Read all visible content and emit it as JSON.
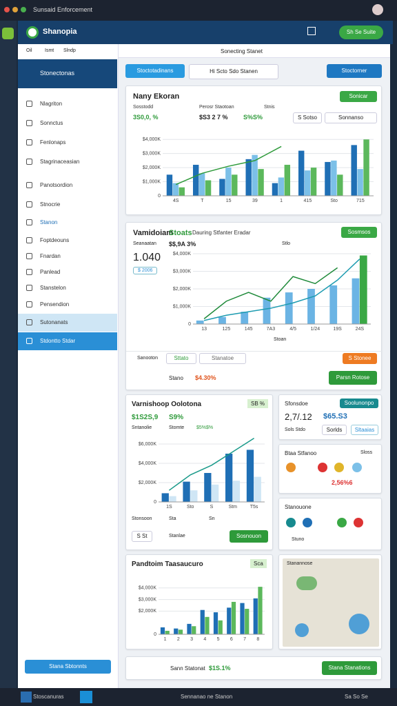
{
  "window": {
    "title": "Sunsaid Enforcement"
  },
  "header": {
    "app": "Shanopia",
    "button": "Sh Se Suite"
  },
  "sidebar": {
    "tabs": [
      "Oil",
      "Ismt",
      "Slndp"
    ],
    "selected": "Stonectonas",
    "items": [
      "Nlagriton",
      "Sonnctus",
      "Fenlonaps",
      "Stagrinaceasian",
      "Panotsordion",
      "Stnocrie",
      "Stanon",
      "Foptdeouns",
      "Fnardan",
      "Panlead",
      "Stanstelon",
      "Pensendion",
      "Sutonanats",
      "Stdontto Stdar"
    ],
    "footer_button": "Stana Sbtonnts"
  },
  "toolbar": {
    "title": "Sonecting Stanet",
    "primary": "Stoctotadinans",
    "segment": "Hi Scto  Sdo  Stanen",
    "secondary": "Stoctorner"
  },
  "card1": {
    "title": "Nany Ekoran",
    "button": "Sonicar",
    "stat_labels": [
      "Sosstodd",
      "Perosr Staotoan",
      "Stnis"
    ],
    "stat_values": [
      "3S0,0, %",
      "$S3 2 7 %",
      "S%S%"
    ],
    "pills": [
      "S Sotso",
      "Sonnanso"
    ],
    "chart": {
      "ylim": [
        0,
        4500
      ],
      "yticks": [
        0,
        {
          "value": 1000,
          "label": "$1,000K"
        },
        {
          "value": 2000,
          "label": "$2,000K"
        },
        {
          "value": 3000,
          "label": "$3,000K"
        },
        {
          "value": 4000,
          "label": "$4,000K"
        }
      ],
      "categories": [
        "4S",
        "T",
        "15",
        "39",
        "1",
        "415",
        "Sto",
        "715"
      ],
      "series": [
        {
          "color": "#1f6fb5",
          "values": [
            1500,
            2200,
            1200,
            2600,
            900,
            3200,
            2400,
            3600
          ]
        },
        {
          "color": "#7cc0e8",
          "values": [
            900,
            1600,
            2000,
            2900,
            1300,
            1800,
            2500,
            1900
          ]
        },
        {
          "color": "#5cb85c",
          "values": [
            600,
            1100,
            1500,
            1900,
            2200,
            2000,
            1500,
            4000
          ]
        }
      ],
      "lines": [
        {
          "color": "#2e9a3a",
          "values": [
            800,
            1600,
            2100,
            2500,
            3500,
            null,
            null,
            null
          ]
        }
      ]
    }
  },
  "card2": {
    "title": "Vamidoiam",
    "tag": "Stoats",
    "subtitle": "Dauring Stfanter Eradar",
    "button": "Sosmsos",
    "stat_label": "Seanaatan",
    "stat_change": "$$,9A 3%",
    "big": "1.040",
    "badge": "$ 2006",
    "legend": "Stlo",
    "x_label": "Stoan",
    "chart": {
      "ylim": [
        0,
        4000
      ],
      "yticks": [
        0,
        {
          "value": 1000,
          "label": "$1,000K"
        },
        {
          "value": 2000,
          "label": "$2,000K"
        },
        {
          "value": 3000,
          "label": "$3,000K"
        },
        {
          "value": 4000,
          "label": "$4,000K"
        }
      ],
      "categories": [
        "13",
        "125",
        "145",
        "7A3",
        "4/5",
        "1/24",
        "19S",
        "24S"
      ],
      "series": [
        {
          "color": "#6bb4e4",
          "values": [
            200,
            400,
            700,
            1500,
            1800,
            2000,
            2200,
            2600
          ]
        },
        {
          "color": "#3aa845",
          "values": [
            0,
            0,
            0,
            0,
            0,
            0,
            0,
            3900
          ]
        }
      ],
      "lines": [
        {
          "color": "#1f8a3a",
          "values": [
            300,
            1300,
            1800,
            1300,
            2700,
            2300,
            3200,
            null
          ]
        },
        {
          "color": "#1c9bb0",
          "values": [
            200,
            500,
            700,
            900,
            1200,
            1600,
            2500,
            3700
          ]
        }
      ]
    },
    "filters": [
      "Sanooton",
      "Sttato",
      "Stanatoe"
    ],
    "orange_button": "S Stonee",
    "footer_label": "Stano",
    "footer_value": "$4.30%",
    "green_button": "Parsn Rotose"
  },
  "card3": {
    "title": "Varnishoop Oolotona",
    "badge": "SB %",
    "stat": "$1S2S,9",
    "stat_change": "S9%",
    "sub_labels": [
      "Sntanolie",
      "Stomte",
      "$5%$%"
    ],
    "chart": {
      "ylim": [
        0,
        7000
      ],
      "yticks": [
        0,
        {
          "value": 2000,
          "label": "$2,000K"
        },
        {
          "value": 4000,
          "label": "$4,000K"
        },
        {
          "value": 6000,
          "label": "$6,000K"
        }
      ],
      "categories": [
        "1S",
        "Sto",
        "S",
        "Stm",
        "T5s"
      ],
      "series": [
        {
          "color": "#1f6fb5",
          "values": [
            900,
            2100,
            3000,
            5000,
            5400
          ]
        },
        {
          "color": "#cfe6f5",
          "values": [
            600,
            1200,
            1800,
            2200,
            2600
          ]
        }
      ],
      "lines": [
        {
          "color": "#1a9a8a",
          "values": [
            1200,
            2800,
            3800,
            5200,
            6600
          ]
        }
      ]
    },
    "legend": [
      "Stonsoon",
      "Sta",
      "Sn"
    ],
    "small_button": "S St",
    "footer_text": "Stanlae",
    "green_button": "Sosnouon"
  },
  "card4": {
    "title": "Sfonsdoe",
    "button": "Soolunonpo",
    "value": "2,7/.12",
    "value2": "$65.S3",
    "chips": [
      "Sols Stdo",
      "Sorlds",
      "Sltaaias"
    ]
  },
  "card5": {
    "title": "Btaa Stfanoo",
    "tag": "Sloss",
    "value": "2,56%6"
  },
  "card6": {
    "title": "Stanouone",
    "legend": "Stuno"
  },
  "card7": {
    "title": "Pandtoim Taasaucuro",
    "badge": "Sca",
    "chart": {
      "ylim": [
        0,
        5000
      ],
      "yticks": [
        0,
        {
          "value": 2000,
          "label": "$2,000K"
        },
        {
          "value": 3000,
          "label": "$3,000K"
        },
        {
          "value": 4000,
          "label": "$4,000K"
        }
      ],
      "categories": [
        "1",
        "2",
        "3",
        "4",
        "5",
        "6",
        "7",
        "8"
      ],
      "series": [
        {
          "color": "#1f6fb5",
          "values": [
            600,
            500,
            900,
            2100,
            1900,
            2300,
            2700,
            3100
          ]
        },
        {
          "color": "#5cb85c",
          "values": [
            300,
            400,
            700,
            1500,
            1200,
            2800,
            2200,
            4100
          ]
        }
      ],
      "lines": []
    }
  },
  "map": {
    "title": "Stanannose"
  },
  "bottom": {
    "label": "Sann Statonat",
    "value": "$1S.1%",
    "button": "Stana Stanations"
  },
  "taskbar": {
    "app": "Stoscanuras",
    "center": "Sennanao ne Stanon",
    "right": "Sa So Se"
  }
}
